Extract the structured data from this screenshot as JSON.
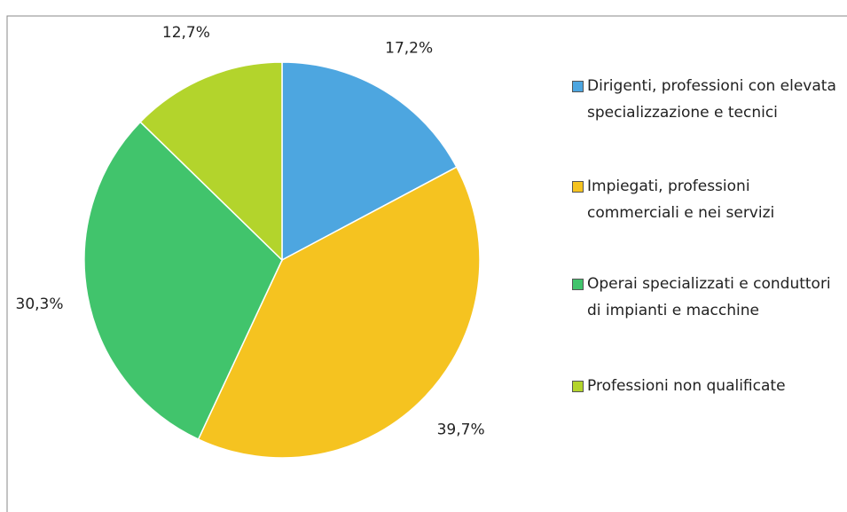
{
  "chart_data": {
    "type": "pie",
    "categories": [
      "Dirigenti, professioni con elevata specializzazione e tecnici",
      "Impiegati, professioni commerciali e nei servizi",
      "Operai specializzati e conduttori di impianti e macchine",
      "Professioni non qualificate"
    ],
    "values": [
      17.2,
      39.7,
      30.3,
      12.7
    ],
    "value_labels": [
      "17,2%",
      "39,7%",
      "30,3%",
      "12,7%"
    ],
    "colors": [
      "#4da6e0",
      "#f5c320",
      "#41c46c",
      "#b3d42c"
    ],
    "legend": "right"
  }
}
